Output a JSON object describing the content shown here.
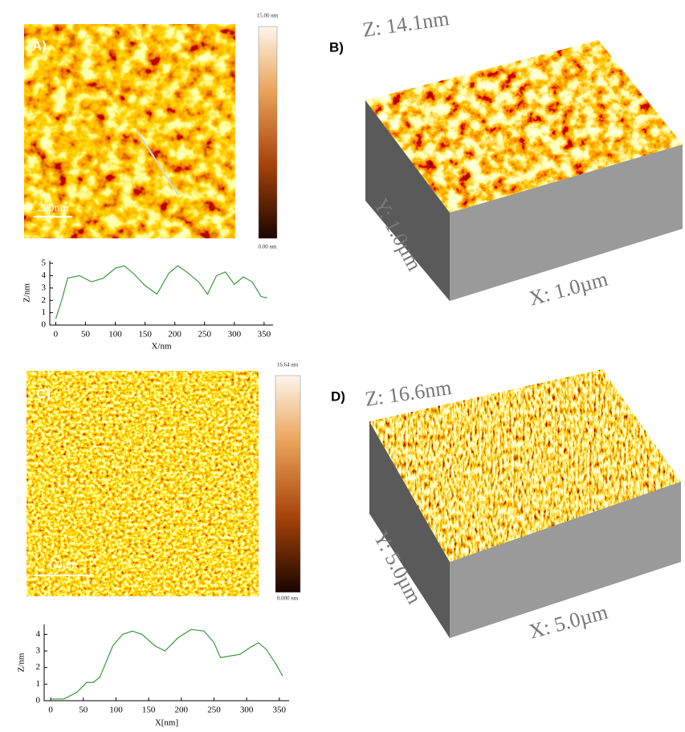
{
  "panels": [
    {
      "label": "A)",
      "scale_bar": "200nm",
      "colorbar_max": "15.00 nm",
      "colorbar_min": "0.00 nm"
    },
    {
      "label": "B)",
      "z_label": "Z: 14.1nm",
      "y_label": "Y: 1.0µm",
      "x_label": "X: 1.0µm"
    },
    {
      "label": "C)",
      "scale_bar": "1.0µm",
      "colorbar_max": "16.64 nm",
      "colorbar_min": "0.000 nm"
    },
    {
      "label": "D)",
      "z_label": "Z: 16.6nm",
      "y_label": "Y: 5.0µm",
      "x_label": "X: 5.0µm"
    }
  ],
  "profiles": [
    {
      "type": "line",
      "x_label": "X/nm",
      "y_label": "Z/nm",
      "color": "#3a9a3a",
      "x": [
        0,
        10,
        20,
        40,
        60,
        80,
        100,
        115,
        130,
        150,
        170,
        190,
        205,
        220,
        240,
        255,
        270,
        285,
        300,
        315,
        330,
        345,
        355
      ],
      "values": [
        0.5,
        2,
        3.8,
        4,
        3.5,
        3.8,
        4.6,
        4.8,
        4.2,
        3.2,
        2.5,
        4.2,
        4.8,
        4.3,
        3.5,
        2.5,
        4,
        4.3,
        3.3,
        3.9,
        3.5,
        2.3,
        2.2
      ],
      "xlim": [
        -10,
        365
      ],
      "ylim": [
        0,
        5.2
      ],
      "xticks": [
        0,
        50,
        100,
        150,
        200,
        250,
        300,
        350
      ],
      "yticks": [
        0,
        1,
        2,
        3,
        4,
        5
      ]
    },
    {
      "type": "line",
      "x_label": "X[nm]",
      "y_label": "Z/nm",
      "color": "#3a9a3a",
      "x": [
        0,
        20,
        40,
        55,
        65,
        75,
        95,
        110,
        125,
        140,
        160,
        175,
        195,
        215,
        235,
        250,
        260,
        275,
        290,
        305,
        318,
        330,
        345,
        355
      ],
      "values": [
        0.1,
        0.1,
        0.5,
        1.1,
        1.1,
        1.4,
        3.3,
        4,
        4.2,
        4,
        3.3,
        3,
        3.8,
        4.3,
        4.2,
        3.5,
        2.6,
        2.7,
        2.8,
        3.2,
        3.5,
        3.1,
        2.2,
        1.5
      ],
      "xlim": [
        -10,
        365
      ],
      "ylim": [
        0,
        4.6
      ],
      "xticks": [
        0,
        50,
        100,
        150,
        200,
        250,
        300,
        350
      ],
      "yticks": [
        0,
        1,
        2,
        3,
        4
      ]
    }
  ]
}
